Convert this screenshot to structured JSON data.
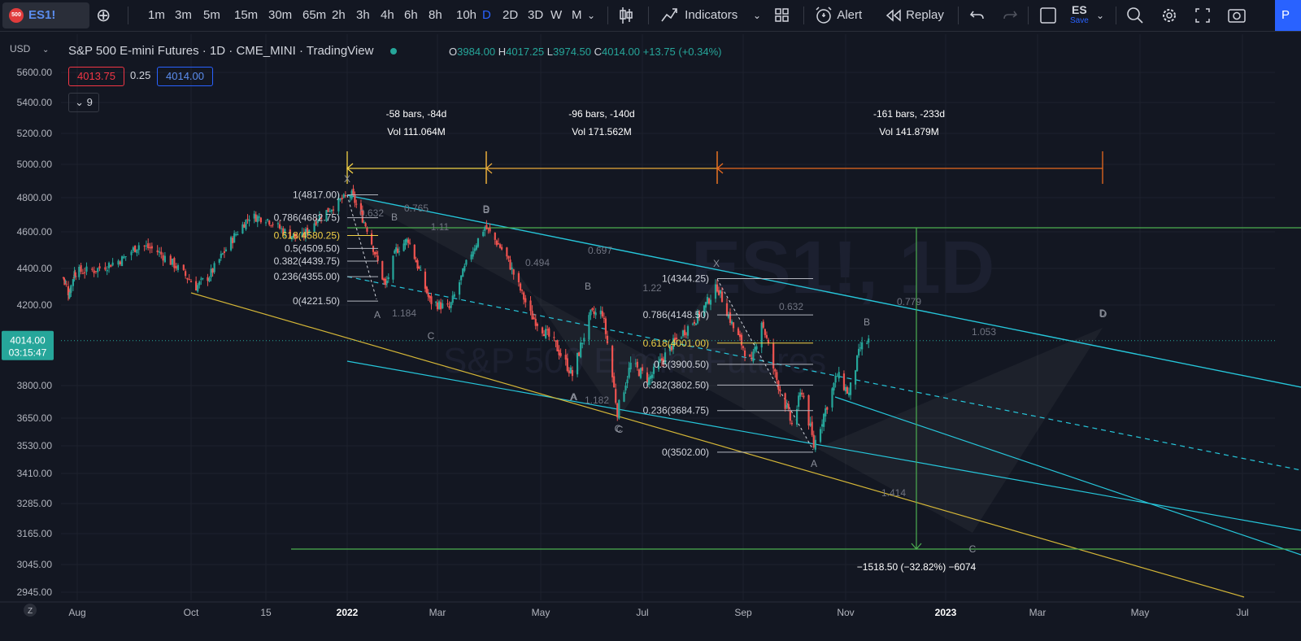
{
  "toolbar": {
    "symbol": "ES1!",
    "symbol_badge": "500",
    "add_symbol_icon": "plus-circle-icon",
    "intervals": [
      "1m",
      "3m",
      "5m",
      "15m",
      "30m",
      "65m",
      "2h",
      "3h",
      "4h",
      "6h",
      "8h",
      "10h",
      "D",
      "2D",
      "3D",
      "W",
      "M"
    ],
    "active_interval": "D",
    "indicators_label": "Indicators",
    "alert_label": "Alert",
    "replay_label": "Replay",
    "layout_name": "ES",
    "save_label": "Save",
    "publish_label": "P"
  },
  "legend": {
    "title": "S&P 500 E-mini Futures · 1D · CME_MINI · TradingView",
    "open_label": "O",
    "open": "3984.00",
    "high_label": "H",
    "high": "4017.25",
    "low_label": "L",
    "low": "3974.50",
    "close_label": "C",
    "close": "4014.00",
    "change": "+13.75 (+0.34%)",
    "bid": "4013.75",
    "spread": "0.25",
    "ask": "4014.00",
    "collapse_count": "9"
  },
  "colors": {
    "background": "#131722",
    "up": "#26a69a",
    "down": "#ef5350",
    "green_line": "#4caf50",
    "teal_line": "#26c6da",
    "yellow_line": "#d4b637",
    "orange_line": "#e86a1e",
    "price_label_bg": "#26a69a"
  },
  "chart_data": {
    "type": "candlestick",
    "currency": "USD",
    "y_ticks": [
      5600,
      5400,
      5200,
      5000,
      4800,
      4600,
      4400,
      4200,
      4014,
      3800,
      3650,
      3530,
      3410,
      3285,
      3165,
      3045,
      2945
    ],
    "y_tick_labels": [
      "5600.00",
      "5400.00",
      "5200.00",
      "5000.00",
      "4800.00",
      "4600.00",
      "4400.00",
      "4200.00",
      "4014.00",
      "3800.00",
      "3650.00",
      "3530.00",
      "3410.00",
      "3285.00",
      "3165.00",
      "3045.00",
      "2945.00"
    ],
    "current_price": "4014.00",
    "countdown": "03:15:47",
    "x_ticks": [
      "Aug",
      "Oct",
      "15",
      "2022",
      "Mar",
      "May",
      "Jul",
      "Sep",
      "Nov",
      "2023",
      "Mar",
      "May",
      "Jul"
    ],
    "x_tick_dates": [
      "2021-08-01",
      "2021-10-01",
      "2021-11-15",
      "2022-01-01",
      "2022-03-01",
      "2022-05-01",
      "2022-07-01",
      "2022-09-01",
      "2022-11-01",
      "2023-01-01",
      "2023-03-01",
      "2023-05-01",
      "2023-07-01"
    ],
    "close_path": [
      {
        "date": "2021-07-12",
        "close": 4350
      },
      {
        "date": "2021-07-20",
        "close": 4260
      },
      {
        "date": "2021-07-28",
        "close": 4380
      },
      {
        "date": "2021-08-10",
        "close": 4390
      },
      {
        "date": "2021-08-25",
        "close": 4450
      },
      {
        "date": "2021-09-03",
        "close": 4530
      },
      {
        "date": "2021-09-12",
        "close": 4500
      },
      {
        "date": "2021-09-22",
        "close": 4420
      },
      {
        "date": "2021-10-04",
        "close": 4300
      },
      {
        "date": "2021-10-12",
        "close": 4360
      },
      {
        "date": "2021-10-25",
        "close": 4550
      },
      {
        "date": "2021-11-05",
        "close": 4690
      },
      {
        "date": "2021-11-15",
        "close": 4680
      },
      {
        "date": "2021-11-26",
        "close": 4600
      },
      {
        "date": "2021-12-05",
        "close": 4560
      },
      {
        "date": "2021-12-15",
        "close": 4680
      },
      {
        "date": "2021-12-29",
        "close": 4790
      },
      {
        "date": "2022-01-04",
        "close": 4817
      },
      {
        "date": "2022-01-14",
        "close": 4620
      },
      {
        "date": "2022-01-26",
        "close": 4300
      },
      {
        "date": "2022-02-02",
        "close": 4500
      },
      {
        "date": "2022-02-10",
        "close": 4560
      },
      {
        "date": "2022-02-24",
        "close": 4221
      },
      {
        "date": "2022-03-08",
        "close": 4180
      },
      {
        "date": "2022-03-20",
        "close": 4470
      },
      {
        "date": "2022-03-29",
        "close": 4630
      },
      {
        "date": "2022-04-10",
        "close": 4480
      },
      {
        "date": "2022-04-25",
        "close": 4150
      },
      {
        "date": "2022-05-10",
        "close": 3990
      },
      {
        "date": "2022-05-20",
        "close": 3850
      },
      {
        "date": "2022-05-31",
        "close": 4150
      },
      {
        "date": "2022-06-07",
        "close": 4160
      },
      {
        "date": "2022-06-16",
        "close": 3680
      },
      {
        "date": "2022-06-24",
        "close": 3900
      },
      {
        "date": "2022-07-05",
        "close": 3830
      },
      {
        "date": "2022-07-20",
        "close": 4000
      },
      {
        "date": "2022-08-05",
        "close": 4150
      },
      {
        "date": "2022-08-16",
        "close": 4300
      },
      {
        "date": "2022-08-26",
        "close": 4080
      },
      {
        "date": "2022-09-06",
        "close": 3900
      },
      {
        "date": "2022-09-12",
        "close": 4120
      },
      {
        "date": "2022-09-20",
        "close": 3850
      },
      {
        "date": "2022-09-30",
        "close": 3620
      },
      {
        "date": "2022-10-06",
        "close": 3780
      },
      {
        "date": "2022-10-13",
        "close": 3530
      },
      {
        "date": "2022-10-27",
        "close": 3850
      },
      {
        "date": "2022-11-03",
        "close": 3760
      },
      {
        "date": "2022-11-10",
        "close": 3980
      },
      {
        "date": "2022-11-15",
        "close": 4014
      }
    ],
    "fib_retracements": [
      {
        "levels": [
          "1(4817.00)",
          "0.786(4682.75)",
          "0.618(4580.25)",
          "0.5(4509.50)",
          "0.382(4439.75)",
          "0.236(4355.00)",
          "0(4221.50)"
        ],
        "values": [
          4817,
          4682.75,
          4580.25,
          4509.5,
          4439.75,
          4355,
          4221.5
        ]
      },
      {
        "levels": [
          "1(4344.25)",
          "0.786(4148.50)",
          "0.618(4001.00)",
          "0.5(3900.50)",
          "0.382(3802.50)",
          "0.236(3684.75)",
          "0(3502.00)"
        ],
        "values": [
          4344.25,
          4148.5,
          4001,
          3900.5,
          3802.5,
          3684.75,
          3502
        ]
      }
    ],
    "range_measurements": [
      {
        "bars": "-58 bars, -84d",
        "volume": "Vol 111.064M"
      },
      {
        "bars": "-96 bars, -140d",
        "volume": "Vol 171.562M"
      },
      {
        "bars": "-161 bars, -233d",
        "volume": "Vol 141.879M"
      }
    ],
    "price_range_label": "−1518.50 (−32.82%) −6074",
    "pattern_labels": [
      "X",
      "B",
      "A",
      "C",
      "D",
      "B",
      "A",
      "C",
      "B",
      "A",
      "C",
      "D",
      "X",
      "B",
      "A",
      "C",
      "D"
    ],
    "pattern_ratios": [
      "0.632",
      "0.765",
      "1.184",
      "1.11",
      "0.697",
      "0.494",
      "1.22",
      "1.182",
      "0.632",
      "0.779",
      "1.053",
      "1.414"
    ],
    "watermark": "ES1!, 1D",
    "watermark_sub": "S&P 500 E-mini Futures"
  }
}
